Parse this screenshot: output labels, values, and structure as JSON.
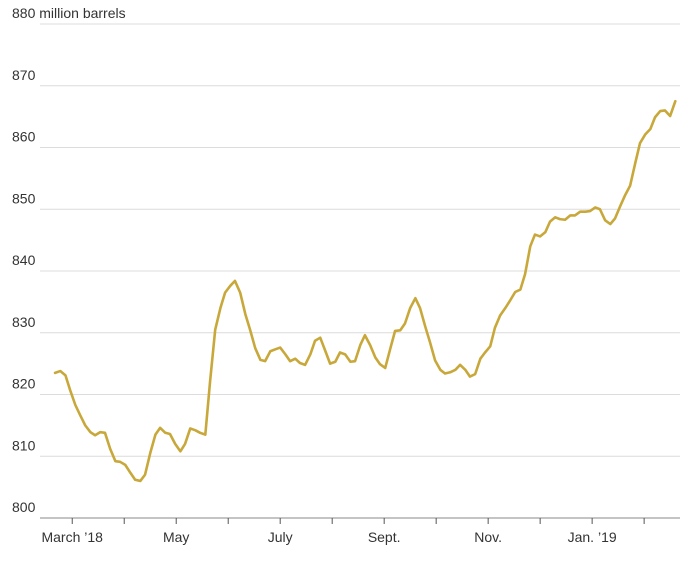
{
  "chart_data": {
    "type": "line",
    "x": [
      -0.33,
      -0.23,
      -0.13,
      -0.04,
      0.06,
      0.15,
      0.25,
      0.35,
      0.44,
      0.54,
      0.63,
      0.73,
      0.83,
      0.92,
      1.02,
      1.12,
      1.21,
      1.31,
      1.4,
      1.5,
      1.6,
      1.69,
      1.79,
      1.88,
      1.98,
      2.08,
      2.17,
      2.27,
      2.37,
      2.46,
      2.56,
      2.65,
      2.75,
      2.85,
      2.94,
      3.04,
      3.13,
      3.23,
      3.33,
      3.42,
      3.52,
      3.62,
      3.71,
      3.81,
      3.9,
      4.0,
      4.1,
      4.19,
      4.29,
      4.38,
      4.48,
      4.58,
      4.67,
      4.77,
      4.87,
      4.96,
      5.06,
      5.15,
      5.25,
      5.35,
      5.44,
      5.54,
      5.63,
      5.73,
      5.83,
      5.92,
      6.02,
      6.12,
      6.21,
      6.31,
      6.4,
      6.5,
      6.6,
      6.69,
      6.79,
      6.88,
      6.98,
      7.08,
      7.17,
      7.27,
      7.37,
      7.46,
      7.56,
      7.65,
      7.75,
      7.85,
      7.94,
      8.04,
      8.13,
      8.23,
      8.33,
      8.42,
      8.52,
      8.62,
      8.71,
      8.81,
      8.9,
      9.0,
      9.1,
      9.19,
      9.29,
      9.38,
      9.48,
      9.58,
      9.67,
      9.77,
      9.87,
      9.96,
      10.06,
      10.15,
      10.25,
      10.35,
      10.44,
      10.54,
      10.63,
      10.73,
      10.83,
      10.92,
      11.02,
      11.12,
      11.21,
      11.31,
      11.4,
      11.5,
      11.6
    ],
    "series": [
      {
        "color": "#c8a83a",
        "values": [
          823.5,
          823.8,
          823.1,
          820.7,
          818.3,
          816.7,
          815.0,
          813.9,
          813.4,
          813.9,
          813.8,
          811.2,
          809.2,
          809.1,
          808.6,
          807.3,
          806.2,
          806.0,
          807.0,
          810.5,
          813.5,
          814.6,
          813.8,
          813.6,
          812.0,
          810.8,
          812.0,
          814.5,
          814.2,
          813.8,
          813.5,
          822.0,
          830.5,
          834.0,
          836.5,
          837.6,
          838.4,
          836.5,
          833.0,
          830.5,
          827.5,
          825.6,
          825.4,
          827.0,
          827.3,
          827.6,
          826.5,
          825.4,
          825.8,
          825.1,
          824.8,
          826.5,
          828.7,
          829.2,
          827.0,
          825.0,
          825.3,
          826.8,
          826.5,
          825.3,
          825.4,
          828.0,
          829.6,
          828.0,
          826.0,
          824.9,
          824.3,
          827.5,
          830.3,
          830.4,
          831.5,
          834.0,
          835.6,
          834.0,
          831.0,
          828.5,
          825.5,
          824.0,
          823.4,
          823.6,
          824.0,
          824.8,
          824.0,
          822.9,
          823.3,
          825.8,
          826.8,
          827.8,
          830.8,
          832.8,
          834.0,
          835.2,
          836.6,
          837.0,
          839.5,
          844.0,
          845.9,
          845.6,
          846.3,
          848.0,
          848.7,
          848.4,
          848.3,
          849.0,
          849.0,
          849.6,
          849.6,
          849.7,
          850.3,
          850.0,
          848.2,
          847.6,
          848.5,
          850.5,
          852.2,
          853.8,
          857.5,
          860.7,
          862.1,
          863.0,
          864.9,
          865.9,
          866.0,
          865.1,
          867.5
        ]
      }
    ],
    "xlim": [
      -0.62,
      11.69
    ],
    "xticks": [
      {
        "value": 0,
        "label": "March ’18"
      },
      {
        "value": 2,
        "label": "May"
      },
      {
        "value": 4,
        "label": "July"
      },
      {
        "value": 6,
        "label": "Sept."
      },
      {
        "value": 8,
        "label": "Nov."
      },
      {
        "value": 10,
        "label": "Jan. ’19"
      }
    ],
    "xminorticks": [
      1,
      3,
      5,
      7,
      9,
      11
    ],
    "ylim": [
      800,
      880
    ],
    "yticks": [
      800,
      810,
      820,
      830,
      840,
      850,
      860,
      870,
      {
        "value": 880,
        "label": "880 million barrels"
      }
    ],
    "grid": true
  }
}
